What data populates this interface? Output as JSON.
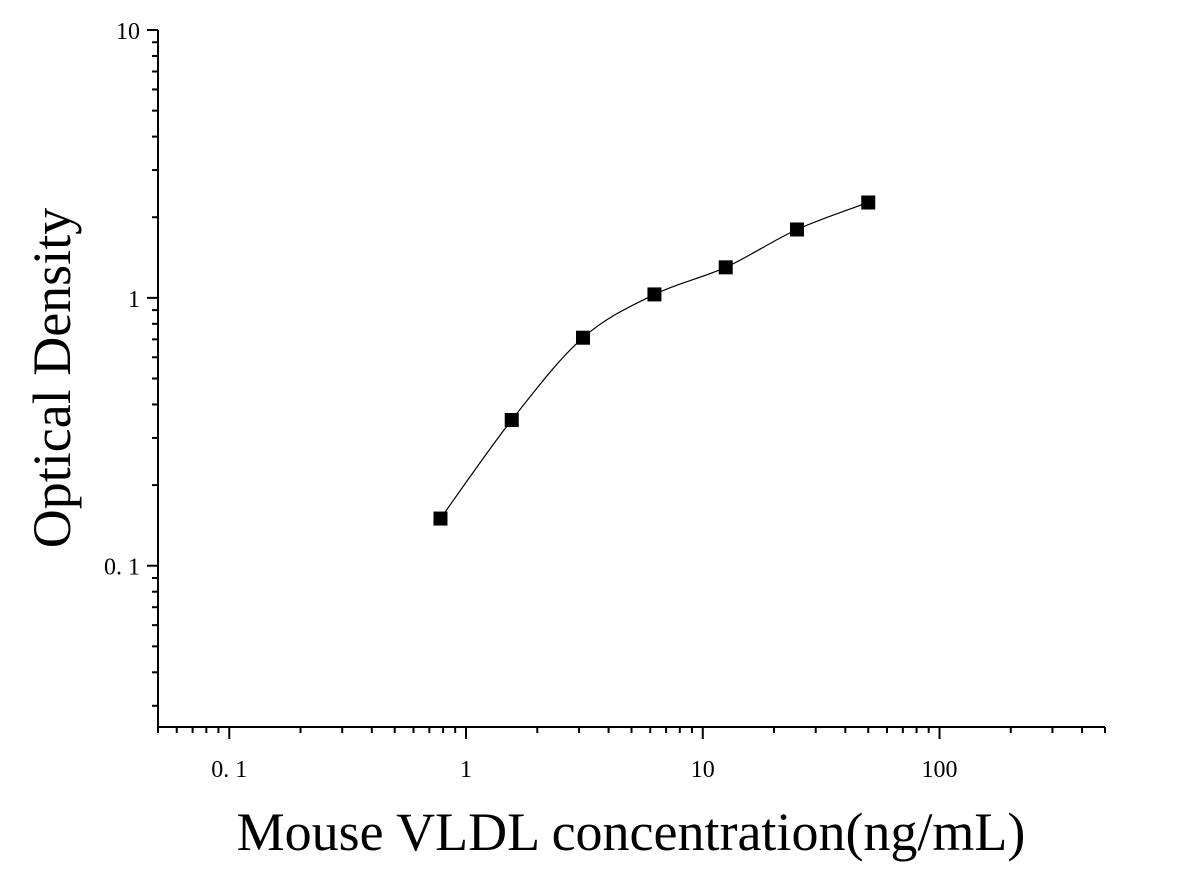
{
  "chart_data": {
    "type": "scatter",
    "title": "",
    "xlabel": "Mouse VLDL concentration(ng/mL)",
    "ylabel": "Optical Density",
    "xscale": "log",
    "yscale": "log",
    "xlim": [
      0.05,
      500
    ],
    "ylim": [
      0.025,
      10
    ],
    "x_ticks": [
      {
        "value": 0.1,
        "label": "0. 1"
      },
      {
        "value": 1,
        "label": "1"
      },
      {
        "value": 10,
        "label": "10"
      },
      {
        "value": 100,
        "label": "100"
      }
    ],
    "y_ticks": [
      {
        "value": 0.1,
        "label": "0. 1"
      },
      {
        "value": 1,
        "label": "1"
      },
      {
        "value": 10,
        "label": "10"
      }
    ],
    "grid": false,
    "legend": "none",
    "series": [
      {
        "marker": "square",
        "color": "#000000",
        "x": [
          0.78,
          1.56,
          3.12,
          6.25,
          12.5,
          25,
          50
        ],
        "y": [
          0.15,
          0.35,
          0.71,
          1.03,
          1.3,
          1.8,
          2.27
        ]
      }
    ],
    "fit_curve": {
      "color": "#000000",
      "x_range": [
        0.78,
        50
      ]
    }
  }
}
